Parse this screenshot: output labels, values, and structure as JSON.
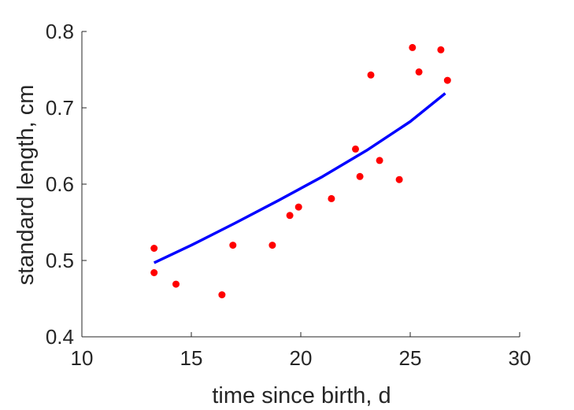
{
  "chart_data": {
    "type": "scatter",
    "title": "",
    "xlabel": "time since birth, d",
    "ylabel": "standard length, cm",
    "xlim": [
      10,
      30
    ],
    "ylim": [
      0.4,
      0.8
    ],
    "xticks": [
      10,
      15,
      20,
      25,
      30
    ],
    "yticks": [
      0.4,
      0.5,
      0.6,
      0.7,
      0.8
    ],
    "xtick_labels": [
      "10",
      "15",
      "20",
      "25",
      "30"
    ],
    "ytick_labels": [
      "0.4",
      "0.5",
      "0.6",
      "0.7",
      "0.8"
    ],
    "grid": false,
    "colors": {
      "points": "#ff0000",
      "curve": "#0000ff",
      "axis": "#262626"
    },
    "series": [
      {
        "kind": "points",
        "x": [
          13.3,
          13.3,
          14.3,
          16.4,
          16.9,
          18.7,
          19.5,
          19.9,
          21.4,
          22.5,
          22.7,
          23.2,
          23.6,
          24.5,
          25.1,
          25.4,
          26.4,
          26.7
        ],
        "y": [
          0.516,
          0.484,
          0.469,
          0.455,
          0.52,
          0.52,
          0.559,
          0.57,
          0.581,
          0.646,
          0.61,
          0.743,
          0.631,
          0.606,
          0.779,
          0.747,
          0.776,
          0.736
        ]
      },
      {
        "kind": "line",
        "x": [
          13.3,
          15.0,
          17.0,
          19.0,
          21.0,
          23.0,
          25.0,
          26.6
        ],
        "y": [
          0.497,
          0.52,
          0.549,
          0.579,
          0.61,
          0.644,
          0.682,
          0.719
        ]
      }
    ]
  }
}
